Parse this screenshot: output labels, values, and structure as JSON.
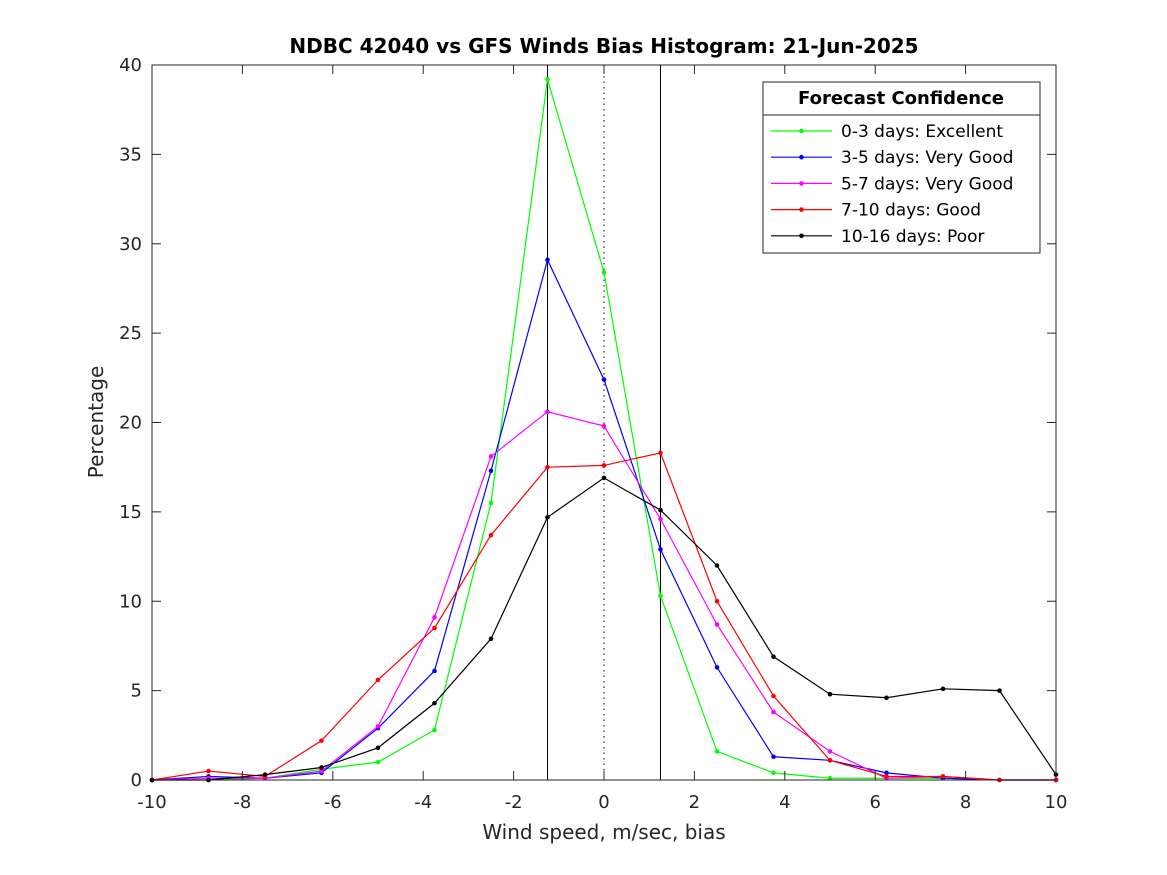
{
  "chart_data": {
    "type": "line",
    "title": "NDBC 42040 vs GFS Winds Bias Histogram: 21-Jun-2025",
    "xlabel": "Wind speed, m/sec, bias",
    "ylabel": "Percentage",
    "xlim": [
      -10,
      10
    ],
    "ylim": [
      0,
      40
    ],
    "xticks": [
      -10,
      -8,
      -6,
      -4,
      -2,
      0,
      2,
      4,
      6,
      8,
      10
    ],
    "yticks": [
      0,
      5,
      10,
      15,
      20,
      25,
      30,
      35,
      40
    ],
    "x": [
      -10,
      -8.75,
      -7.5,
      -6.25,
      -5,
      -3.75,
      -2.5,
      -1.25,
      0,
      1.25,
      2.5,
      3.75,
      5,
      6.25,
      7.5,
      8.75,
      10
    ],
    "series": [
      {
        "name": "0-3 days: Excellent",
        "color": "#00ff00",
        "values": [
          0,
          0,
          0.1,
          0.6,
          1.0,
          2.8,
          15.5,
          39.2,
          28.4,
          10.3,
          1.6,
          0.4,
          0.1,
          0.1,
          0.1,
          0,
          0
        ]
      },
      {
        "name": "3-5 days: Very Good",
        "color": "#0000ff",
        "values": [
          0,
          0.2,
          0.1,
          0.4,
          2.9,
          6.1,
          17.3,
          29.1,
          22.4,
          12.9,
          6.3,
          1.3,
          1.1,
          0.4,
          0.1,
          0,
          0
        ]
      },
      {
        "name": "5-7 days: Very Good",
        "color": "#ff00ff",
        "values": [
          0,
          0.1,
          0.1,
          0.5,
          3.0,
          9.1,
          18.1,
          20.6,
          19.8,
          14.6,
          8.7,
          3.8,
          1.6,
          0.1,
          0.2,
          0,
          0
        ]
      },
      {
        "name": "7-10 days: Good",
        "color": "#ff0000",
        "values": [
          0,
          0.5,
          0.2,
          2.2,
          5.6,
          8.5,
          13.7,
          17.5,
          17.6,
          18.3,
          10.0,
          4.7,
          1.1,
          0.2,
          0.2,
          0,
          0
        ]
      },
      {
        "name": "10-16 days: Poor",
        "color": "#000000",
        "values": [
          0,
          0,
          0.3,
          0.7,
          1.8,
          4.3,
          7.9,
          14.7,
          16.9,
          15.1,
          12.0,
          6.9,
          4.8,
          4.6,
          5.1,
          5.0,
          0.3
        ]
      }
    ],
    "vertical_lines": [
      {
        "x": -1.25,
        "style": "solid"
      },
      {
        "x": 0,
        "style": "dotted"
      },
      {
        "x": 1.25,
        "style": "solid"
      }
    ],
    "legend": {
      "title": "Forecast Confidence",
      "placement": "top-right"
    },
    "grid": false
  }
}
